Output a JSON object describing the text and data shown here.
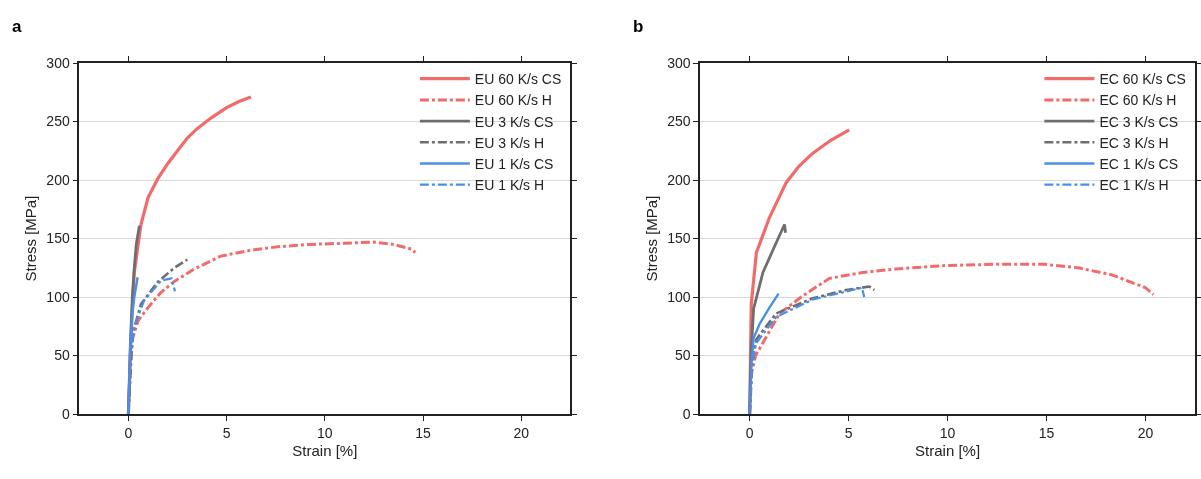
{
  "chart_data": [
    {
      "type": "line",
      "title": "a",
      "xlabel": "Strain [%]",
      "ylabel": "Stress [MPa]",
      "xlim": [
        -2.5,
        22.5
      ],
      "xticks": [
        0,
        5,
        10,
        15,
        20
      ],
      "ylim": [
        0,
        300
      ],
      "yticks": [
        0,
        50,
        100,
        150,
        200,
        250,
        300
      ],
      "grid": "y",
      "legend": "top right",
      "marker": "none",
      "series": [
        {
          "name": "EU 60 K/s CS",
          "color": "#f26b6b",
          "line_style": "solid",
          "x": [
            0,
            0.1,
            0.2,
            0.3,
            0.64,
            1.0,
            1.49,
            2.0,
            2.5,
            3.0,
            3.5,
            4.2,
            5.0,
            5.6,
            6.24
          ],
          "values": [
            0,
            50,
            90,
            121,
            162,
            185,
            201,
            214,
            225,
            236,
            244,
            253,
            262,
            267,
            271
          ]
        },
        {
          "name": "EU 60 K/s H",
          "color": "#f26b6b",
          "line_style": "dashdot",
          "x": [
            0,
            0.1,
            0.22,
            0.5,
            1.0,
            1.6,
            2.3,
            3.36,
            4.7,
            6.2,
            7.6,
            9.2,
            11,
            12.5,
            13.5,
            14.4,
            14.6
          ],
          "values": [
            0,
            40,
            65,
            80,
            91,
            103,
            113,
            124,
            135,
            140,
            143,
            145,
            146,
            147,
            145,
            141,
            138
          ]
        },
        {
          "name": "EU 3 K/s CS",
          "color": "#6e6e6e",
          "line_style": "solid",
          "x": [
            0,
            0.1,
            0.2,
            0.3,
            0.4,
            0.56
          ],
          "values": [
            0,
            60,
            100,
            125,
            145,
            161
          ]
        },
        {
          "name": "EU 3 K/s H",
          "color": "#6e6e6e",
          "line_style": "dashdot",
          "x": [
            0,
            0.15,
            0.22,
            0.64,
            1.5,
            2.34,
            3.0
          ],
          "values": [
            0,
            50,
            69,
            94,
            113,
            125,
            132
          ]
        },
        {
          "name": "EU 1 K/s CS",
          "color": "#4a8fe7",
          "line_style": "solid",
          "x": [
            0,
            0.1,
            0.2,
            0.3,
            0.47
          ],
          "values": [
            0,
            60,
            85,
            100,
            117
          ]
        },
        {
          "name": "EU 1 K/s H",
          "color": "#4a8fe7",
          "line_style": "dashdot",
          "x": [
            0,
            0.1,
            0.3,
            0.8,
            1.66,
            2.2,
            2.37
          ],
          "values": [
            0,
            50,
            75,
            97,
            114,
            116,
            105
          ]
        }
      ]
    },
    {
      "type": "line",
      "title": "b",
      "xlabel": "Strain [%]",
      "ylabel": "Stress [MPa]",
      "xlim": [
        -2.5,
        22.5
      ],
      "xticks": [
        0,
        5,
        10,
        15,
        20
      ],
      "ylim": [
        0,
        300
      ],
      "yticks": [
        0,
        50,
        100,
        150,
        200,
        250,
        300
      ],
      "grid": "y",
      "legend": "top right",
      "marker": "none",
      "series": [
        {
          "name": "EC 60 K/s CS",
          "color": "#f26b6b",
          "line_style": "solid",
          "x": [
            0,
            0.08,
            0.34,
            1.0,
            1.85,
            2.5,
            3.19,
            4.1,
            5.03
          ],
          "values": [
            0,
            94,
            138,
            168,
            198,
            212,
            223,
            234,
            243
          ]
        },
        {
          "name": "EC 60 K/s H",
          "color": "#f26b6b",
          "line_style": "dashdot",
          "x": [
            0,
            0.1,
            0.3,
            1.51,
            2.68,
            4.03,
            5.7,
            7.38,
            9.9,
            12.4,
            14.9,
            16.6,
            18.3,
            20,
            20.4
          ],
          "values": [
            0,
            35,
            50,
            86,
            101,
            116,
            121,
            124,
            127,
            128,
            128,
            125,
            119,
            108,
            102
          ]
        },
        {
          "name": "EC 3 K/s CS",
          "color": "#6e6e6e",
          "line_style": "solid",
          "x": [
            0,
            0.05,
            0.1,
            0.2,
            0.67,
            1.17,
            1.76,
            1.81
          ],
          "values": [
            0,
            40,
            60,
            90,
            121,
            140,
            162,
            155
          ]
        },
        {
          "name": "EC 3 K/s H",
          "color": "#6e6e6e",
          "line_style": "dashdot",
          "x": [
            0,
            0.1,
            0.34,
            1.34,
            3.19,
            4.87,
            6.04,
            6.3
          ],
          "values": [
            0,
            40,
            64,
            86,
            99,
            106,
            109,
            106
          ]
        },
        {
          "name": "EC 1 K/s CS",
          "color": "#4a8fe7",
          "line_style": "solid",
          "x": [
            0,
            0.1,
            0.2,
            0.5,
            1.0,
            1.46
          ],
          "values": [
            0,
            45,
            65,
            77,
            91,
            103
          ]
        },
        {
          "name": "EC 1 K/s H",
          "color": "#4a8fe7",
          "line_style": "dashdot",
          "x": [
            0,
            0.1,
            0.3,
            1.34,
            3.19,
            5.2,
            5.67,
            5.79
          ],
          "values": [
            0,
            40,
            60,
            83,
            98,
            106,
            108,
            100
          ]
        }
      ]
    }
  ]
}
